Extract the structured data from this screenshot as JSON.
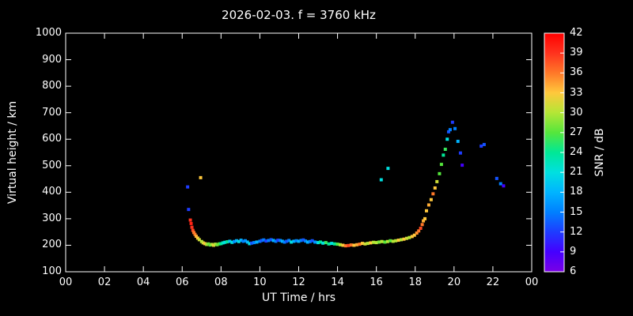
{
  "title": "2026-02-03. f = 3760 kHz",
  "colors": {
    "background": "#000000",
    "axis": "#ffffff",
    "text": "#ffffff"
  },
  "chart_data": {
    "type": "scatter",
    "title": "2026-02-03. f = 3760 kHz",
    "xlabel": "UT Time / hrs",
    "ylabel": "Virtual height / km",
    "cblabel": "SNR / dB",
    "xlim": [
      0,
      24
    ],
    "ylim": [
      100,
      1000
    ],
    "cblim": [
      6,
      42
    ],
    "x_ticks": [
      {
        "v": 0,
        "label": "00"
      },
      {
        "v": 2,
        "label": "02"
      },
      {
        "v": 4,
        "label": "04"
      },
      {
        "v": 6,
        "label": "06"
      },
      {
        "v": 8,
        "label": "08"
      },
      {
        "v": 10,
        "label": "10"
      },
      {
        "v": 12,
        "label": "12"
      },
      {
        "v": 14,
        "label": "14"
      },
      {
        "v": 16,
        "label": "16"
      },
      {
        "v": 18,
        "label": "18"
      },
      {
        "v": 20,
        "label": "20"
      },
      {
        "v": 22,
        "label": "22"
      },
      {
        "v": 24,
        "label": "00"
      }
    ],
    "y_ticks": [
      100,
      200,
      300,
      400,
      500,
      600,
      700,
      800,
      900,
      1000
    ],
    "cb_ticks": [
      6,
      9,
      12,
      15,
      18,
      21,
      24,
      27,
      30,
      33,
      36,
      39,
      42
    ],
    "colormap": [
      {
        "v": 6,
        "c": "#7a00e6"
      },
      {
        "v": 9,
        "c": "#4400ff"
      },
      {
        "v": 12,
        "c": "#1e3cff"
      },
      {
        "v": 15,
        "c": "#0080ff"
      },
      {
        "v": 18,
        "c": "#00b4ff"
      },
      {
        "v": 21,
        "c": "#00e0e0"
      },
      {
        "v": 24,
        "c": "#00e896"
      },
      {
        "v": 27,
        "c": "#55e63c"
      },
      {
        "v": 30,
        "c": "#b4e636"
      },
      {
        "v": 33,
        "c": "#ffc83c"
      },
      {
        "v": 36,
        "c": "#ff7828"
      },
      {
        "v": 39,
        "c": "#ff321e"
      },
      {
        "v": 42,
        "c": "#ff0000"
      }
    ],
    "points": [
      [
        6.28,
        420,
        12
      ],
      [
        6.33,
        335,
        12
      ],
      [
        6.95,
        455,
        33
      ],
      [
        6.42,
        295,
        39
      ],
      [
        6.46,
        282,
        40
      ],
      [
        6.5,
        268,
        39
      ],
      [
        6.55,
        256,
        38
      ],
      [
        6.6,
        248,
        36
      ],
      [
        6.66,
        241,
        36
      ],
      [
        6.72,
        234,
        34
      ],
      [
        6.8,
        227,
        33
      ],
      [
        6.88,
        221,
        31
      ],
      [
        7.0,
        214,
        30
      ],
      [
        7.08,
        209,
        31
      ],
      [
        7.17,
        206,
        33
      ],
      [
        7.26,
        203,
        30
      ],
      [
        7.35,
        205,
        28
      ],
      [
        7.44,
        201,
        27
      ],
      [
        7.53,
        203,
        30
      ],
      [
        7.62,
        200,
        32
      ],
      [
        7.71,
        204,
        30
      ],
      [
        7.8,
        202,
        28
      ],
      [
        7.9,
        205,
        27
      ],
      [
        8.0,
        206,
        24
      ],
      [
        8.1,
        209,
        22
      ],
      [
        8.2,
        211,
        21
      ],
      [
        8.32,
        213,
        24
      ],
      [
        8.45,
        215,
        19
      ],
      [
        8.57,
        211,
        21
      ],
      [
        8.68,
        214,
        16
      ],
      [
        8.8,
        217,
        18
      ],
      [
        8.92,
        214,
        21
      ],
      [
        9.03,
        219,
        18
      ],
      [
        9.14,
        215,
        15
      ],
      [
        9.25,
        217,
        16
      ],
      [
        9.36,
        212,
        18
      ],
      [
        9.47,
        206,
        21
      ],
      [
        9.58,
        208,
        13
      ],
      [
        9.7,
        210,
        15
      ],
      [
        9.84,
        212,
        18
      ],
      [
        10.0,
        215,
        15
      ],
      [
        10.1,
        218,
        13
      ],
      [
        10.2,
        220,
        15
      ],
      [
        10.32,
        216,
        12
      ],
      [
        10.45,
        218,
        15
      ],
      [
        10.58,
        221,
        13
      ],
      [
        10.7,
        218,
        18
      ],
      [
        10.82,
        215,
        15
      ],
      [
        10.93,
        219,
        12
      ],
      [
        11.05,
        218,
        15
      ],
      [
        11.16,
        215,
        18
      ],
      [
        11.27,
        212,
        15
      ],
      [
        11.38,
        215,
        13
      ],
      [
        11.5,
        218,
        15
      ],
      [
        11.62,
        212,
        21
      ],
      [
        11.75,
        215,
        18
      ],
      [
        11.88,
        217,
        15
      ],
      [
        12.0,
        215,
        18
      ],
      [
        12.12,
        218,
        15
      ],
      [
        12.24,
        220,
        13
      ],
      [
        12.35,
        216,
        15
      ],
      [
        12.46,
        212,
        18
      ],
      [
        12.58,
        214,
        15
      ],
      [
        12.7,
        217,
        13
      ],
      [
        12.84,
        212,
        16
      ],
      [
        13.0,
        210,
        21
      ],
      [
        13.12,
        212,
        24
      ],
      [
        13.25,
        208,
        21
      ],
      [
        13.4,
        210,
        26
      ],
      [
        13.55,
        205,
        24
      ],
      [
        13.7,
        207,
        21
      ],
      [
        13.85,
        205,
        24
      ],
      [
        14.0,
        204,
        27
      ],
      [
        14.14,
        202,
        30
      ],
      [
        14.28,
        200,
        33
      ],
      [
        14.42,
        198,
        36
      ],
      [
        14.56,
        199,
        38
      ],
      [
        14.7,
        201,
        36
      ],
      [
        14.85,
        200,
        33
      ],
      [
        15.0,
        202,
        34
      ],
      [
        15.14,
        204,
        36
      ],
      [
        15.28,
        207,
        33
      ],
      [
        15.42,
        205,
        31
      ],
      [
        15.56,
        207,
        30
      ],
      [
        15.7,
        209,
        33
      ],
      [
        15.85,
        211,
        30
      ],
      [
        16.0,
        210,
        30
      ],
      [
        16.14,
        212,
        28
      ],
      [
        16.28,
        214,
        30
      ],
      [
        16.44,
        212,
        27
      ],
      [
        16.58,
        214,
        30
      ],
      [
        16.72,
        217,
        27
      ],
      [
        16.86,
        215,
        30
      ],
      [
        16.25,
        447,
        21
      ],
      [
        16.6,
        490,
        21
      ],
      [
        17.0,
        217,
        30
      ],
      [
        17.14,
        219,
        33
      ],
      [
        17.28,
        221,
        30
      ],
      [
        17.42,
        223,
        33
      ],
      [
        17.56,
        226,
        31
      ],
      [
        17.7,
        229,
        30
      ],
      [
        17.84,
        233,
        33
      ],
      [
        17.96,
        238,
        33
      ],
      [
        18.08,
        246,
        35
      ],
      [
        18.18,
        254,
        36
      ],
      [
        18.28,
        264,
        38
      ],
      [
        18.36,
        278,
        36
      ],
      [
        18.42,
        292,
        34
      ],
      [
        18.5,
        300,
        33
      ],
      [
        18.58,
        330,
        33
      ],
      [
        18.7,
        352,
        34
      ],
      [
        18.82,
        372,
        33
      ],
      [
        18.92,
        394,
        36
      ],
      [
        19.02,
        416,
        33
      ],
      [
        19.12,
        440,
        31
      ],
      [
        19.25,
        470,
        27
      ],
      [
        19.35,
        505,
        27
      ],
      [
        19.45,
        540,
        24
      ],
      [
        19.55,
        562,
        26
      ],
      [
        19.65,
        600,
        21
      ],
      [
        19.72,
        628,
        13
      ],
      [
        19.8,
        636,
        15
      ],
      [
        19.92,
        664,
        12
      ],
      [
        20.05,
        640,
        15
      ],
      [
        20.2,
        592,
        18
      ],
      [
        20.33,
        548,
        12
      ],
      [
        20.42,
        502,
        9
      ],
      [
        21.4,
        574,
        12
      ],
      [
        21.55,
        580,
        13
      ],
      [
        22.2,
        452,
        13
      ],
      [
        22.4,
        432,
        15
      ],
      [
        22.55,
        424,
        9
      ]
    ]
  }
}
